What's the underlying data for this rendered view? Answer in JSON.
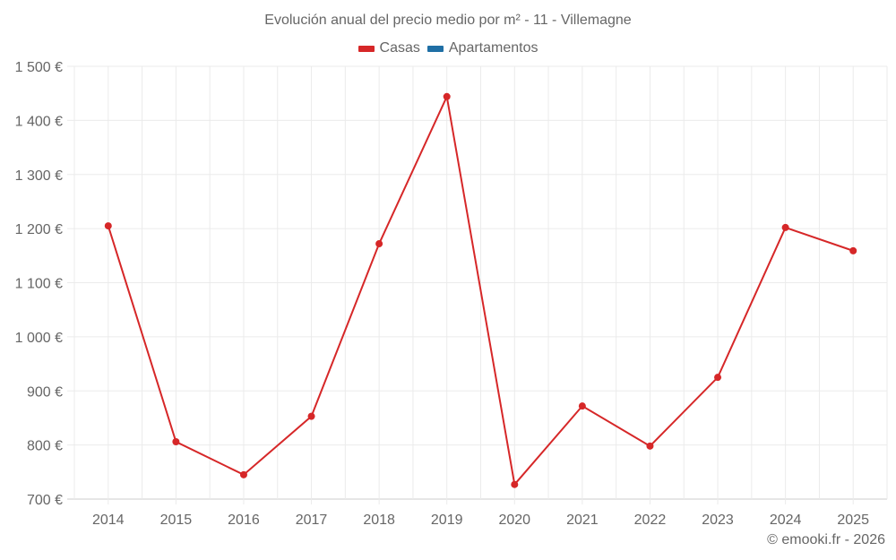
{
  "title": "Evolución anual del precio medio por m² - 11 - Villemagne",
  "legend": [
    {
      "label": "Casas",
      "color": "#d62728"
    },
    {
      "label": "Apartamentos",
      "color": "#1f6fa5"
    }
  ],
  "credit": "© emooki.fr - 2026",
  "colors": {
    "casas": "#d62728",
    "apartamentos": "#1f6fa5",
    "grid": "#ebebeb",
    "axis": "#cccccc",
    "text": "#666666"
  },
  "chart_data": {
    "type": "line",
    "title": "Evolución anual del precio medio por m² - 11 - Villemagne",
    "xlabel": "",
    "ylabel": "",
    "x": [
      "2014",
      "2015",
      "2016",
      "2017",
      "2018",
      "2019",
      "2020",
      "2021",
      "2022",
      "2023",
      "2024",
      "2025"
    ],
    "series": [
      {
        "name": "Casas",
        "color": "#d62728",
        "values": [
          1205,
          806,
          745,
          853,
          1172,
          1444,
          727,
          872,
          798,
          925,
          1202,
          1159
        ]
      },
      {
        "name": "Apartamentos",
        "color": "#1f6fa5",
        "values": []
      }
    ],
    "ylim": [
      700,
      1500
    ],
    "yticks": [
      "700 €",
      "800 €",
      "900 €",
      "1 000 €",
      "1 100 €",
      "1 200 €",
      "1 300 €",
      "1 400 €",
      "1 500 €"
    ],
    "grid": true,
    "legend_position": "top"
  }
}
